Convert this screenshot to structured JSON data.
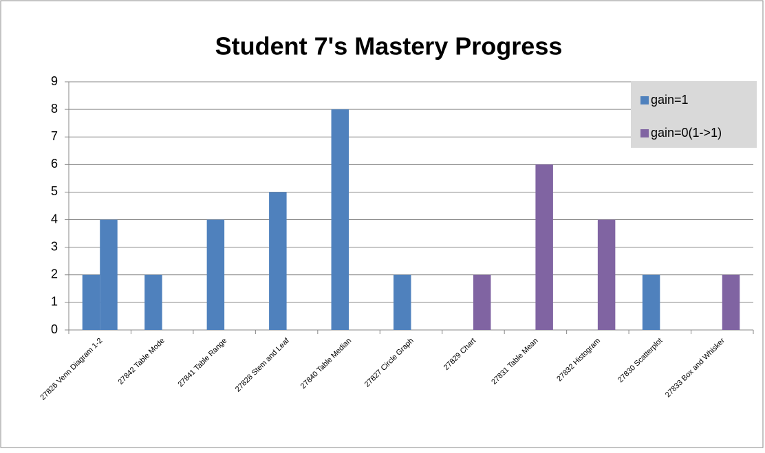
{
  "chart_data": {
    "type": "bar",
    "title": "Student 7's Mastery Progress",
    "categories": [
      "27826 Venn Diagram 1-2",
      "27842 Table Mode",
      "27841 Table Range",
      "27828 Stem and Leaf",
      "27840 Table Median",
      "27827 Circle Graph",
      "27829 Chart",
      "27831 Table Mean",
      "27832 Histogram",
      "27830 Scatterplot",
      "27833 Box and Whisker"
    ],
    "series": [
      {
        "name": "gain=1",
        "color": "#4f81bd",
        "values": [
          2,
          2,
          4,
          5,
          8,
          2,
          null,
          null,
          null,
          2,
          null
        ]
      },
      {
        "name": "gain=0(1->1)",
        "color": "#8064a2",
        "values": [
          4,
          null,
          null,
          null,
          null,
          null,
          2,
          6,
          4,
          null,
          2
        ],
        "point_colors": [
          "#4f81bd",
          "#8064a2",
          "#8064a2",
          "#8064a2",
          "#8064a2",
          "#8064a2",
          "#8064a2",
          "#8064a2",
          "#8064a2",
          "#8064a2",
          "#8064a2"
        ]
      }
    ],
    "ylim": [
      0,
      9
    ],
    "yticks": [
      0,
      1,
      2,
      3,
      4,
      5,
      6,
      7,
      8,
      9
    ],
    "grid": true,
    "legend": "top-right"
  }
}
